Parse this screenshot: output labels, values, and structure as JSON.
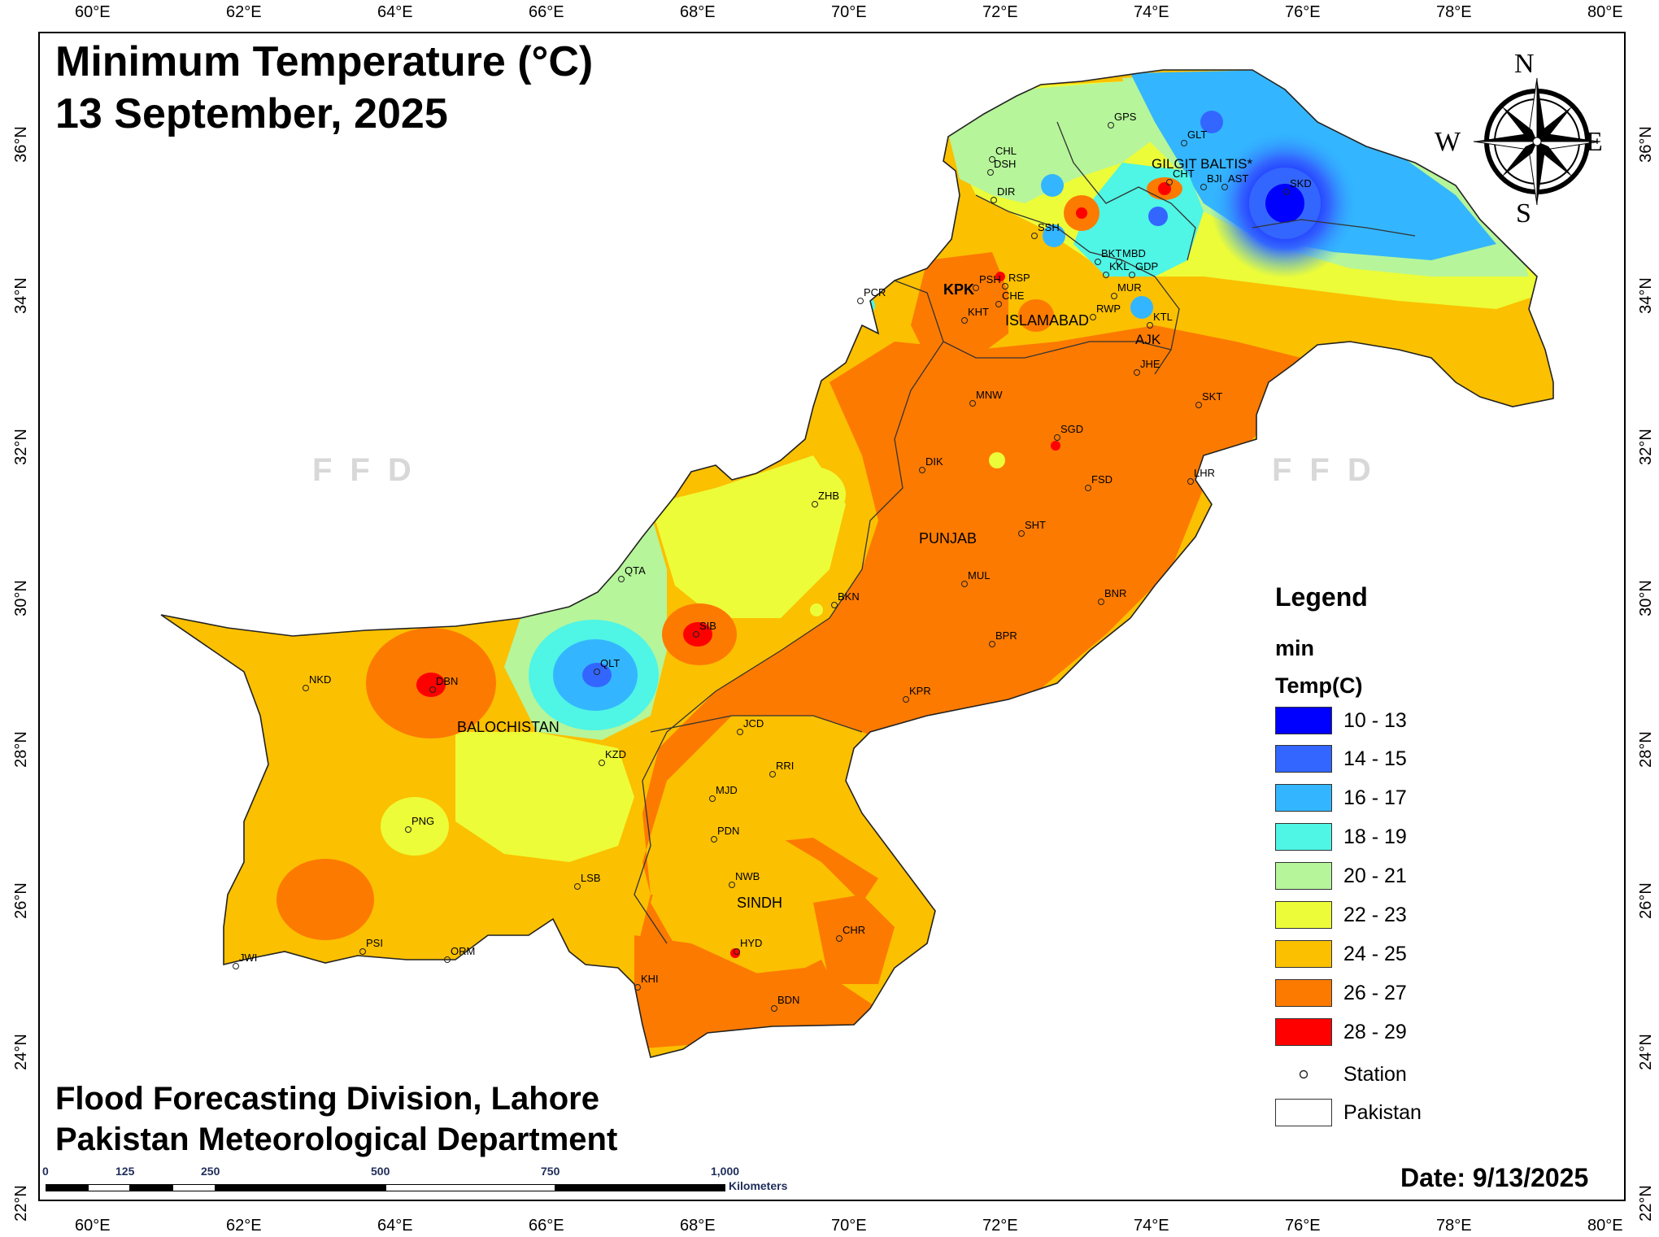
{
  "title": {
    "line1": "Minimum Temperature (°C)",
    "line2": "13 September, 2025"
  },
  "credits": {
    "line1": "Flood Forecasting Division, Lahore",
    "line2": "Pakistan Meteorological Department"
  },
  "date_label": "Date: 9/13/2025",
  "watermark": "FFD",
  "compass": {
    "n": "N",
    "s": "S",
    "e": "E",
    "w": "W"
  },
  "axes": {
    "lon_labels": [
      "60°E",
      "62°E",
      "64°E",
      "66°E",
      "68°E",
      "70°E",
      "72°E",
      "74°E",
      "76°E",
      "78°E",
      "80°E"
    ],
    "lat_labels": [
      "36°N",
      "34°N",
      "32°N",
      "30°N",
      "28°N",
      "26°N",
      "24°N",
      "22°N"
    ],
    "lon_range": [
      59.3,
      80.3
    ],
    "lat_range": [
      21.8,
      37.7
    ]
  },
  "scale_bar": {
    "labels": [
      "0",
      "125",
      "250",
      "500",
      "750",
      "1,000"
    ],
    "unit": "Kilometers"
  },
  "legend": {
    "heading": "Legend",
    "field": "min",
    "units": "Temp(C)",
    "classes": [
      {
        "label": "10 - 13",
        "color": "#0000ff"
      },
      {
        "label": "14 - 15",
        "color": "#3366ff"
      },
      {
        "label": "16 - 17",
        "color": "#33b6ff"
      },
      {
        "label": "18 - 19",
        "color": "#4ff5e5"
      },
      {
        "label": "20 - 21",
        "color": "#b6f59a"
      },
      {
        "label": "22 - 23",
        "color": "#ecfc38"
      },
      {
        "label": "24 - 25",
        "color": "#fbc000"
      },
      {
        "label": "26 - 27",
        "color": "#fd7a00"
      },
      {
        "label": "28 - 29",
        "color": "#ff0000"
      }
    ],
    "station_label": "Station",
    "boundary_label": "Pakistan"
  },
  "regions": [
    "GILGIT BALTIS*",
    "KPK",
    "ISLAMABAD",
    "AJK",
    "PUNJAB",
    "BALOCHISTAN",
    "SINDH"
  ],
  "stations": [
    "GPS",
    "GLT",
    "CHL",
    "DSH",
    "DIR",
    "CHT",
    "BJI",
    "AST",
    "SKD",
    "SSH",
    "BKT",
    "MBD",
    "KKL",
    "GDP",
    "PCR",
    "PSH",
    "RSP",
    "CHE",
    "MUR",
    "RWP",
    "KHT",
    "KTL",
    "JHE",
    "SKT",
    "MNW",
    "SGD",
    "DIK",
    "LHR",
    "FSD",
    "ZHB",
    "SHT",
    "QTA",
    "BKN",
    "MUL",
    "BNR",
    "SIB",
    "BPR",
    "NKD",
    "DBN",
    "QLT",
    "KPR",
    "JCD",
    "KZD",
    "RRI",
    "MJD",
    "PNG",
    "PDN",
    "LSB",
    "NWB",
    "CHR",
    "HYD",
    "PSI",
    "ORM",
    "JWI",
    "KHI",
    "BDN"
  ]
}
